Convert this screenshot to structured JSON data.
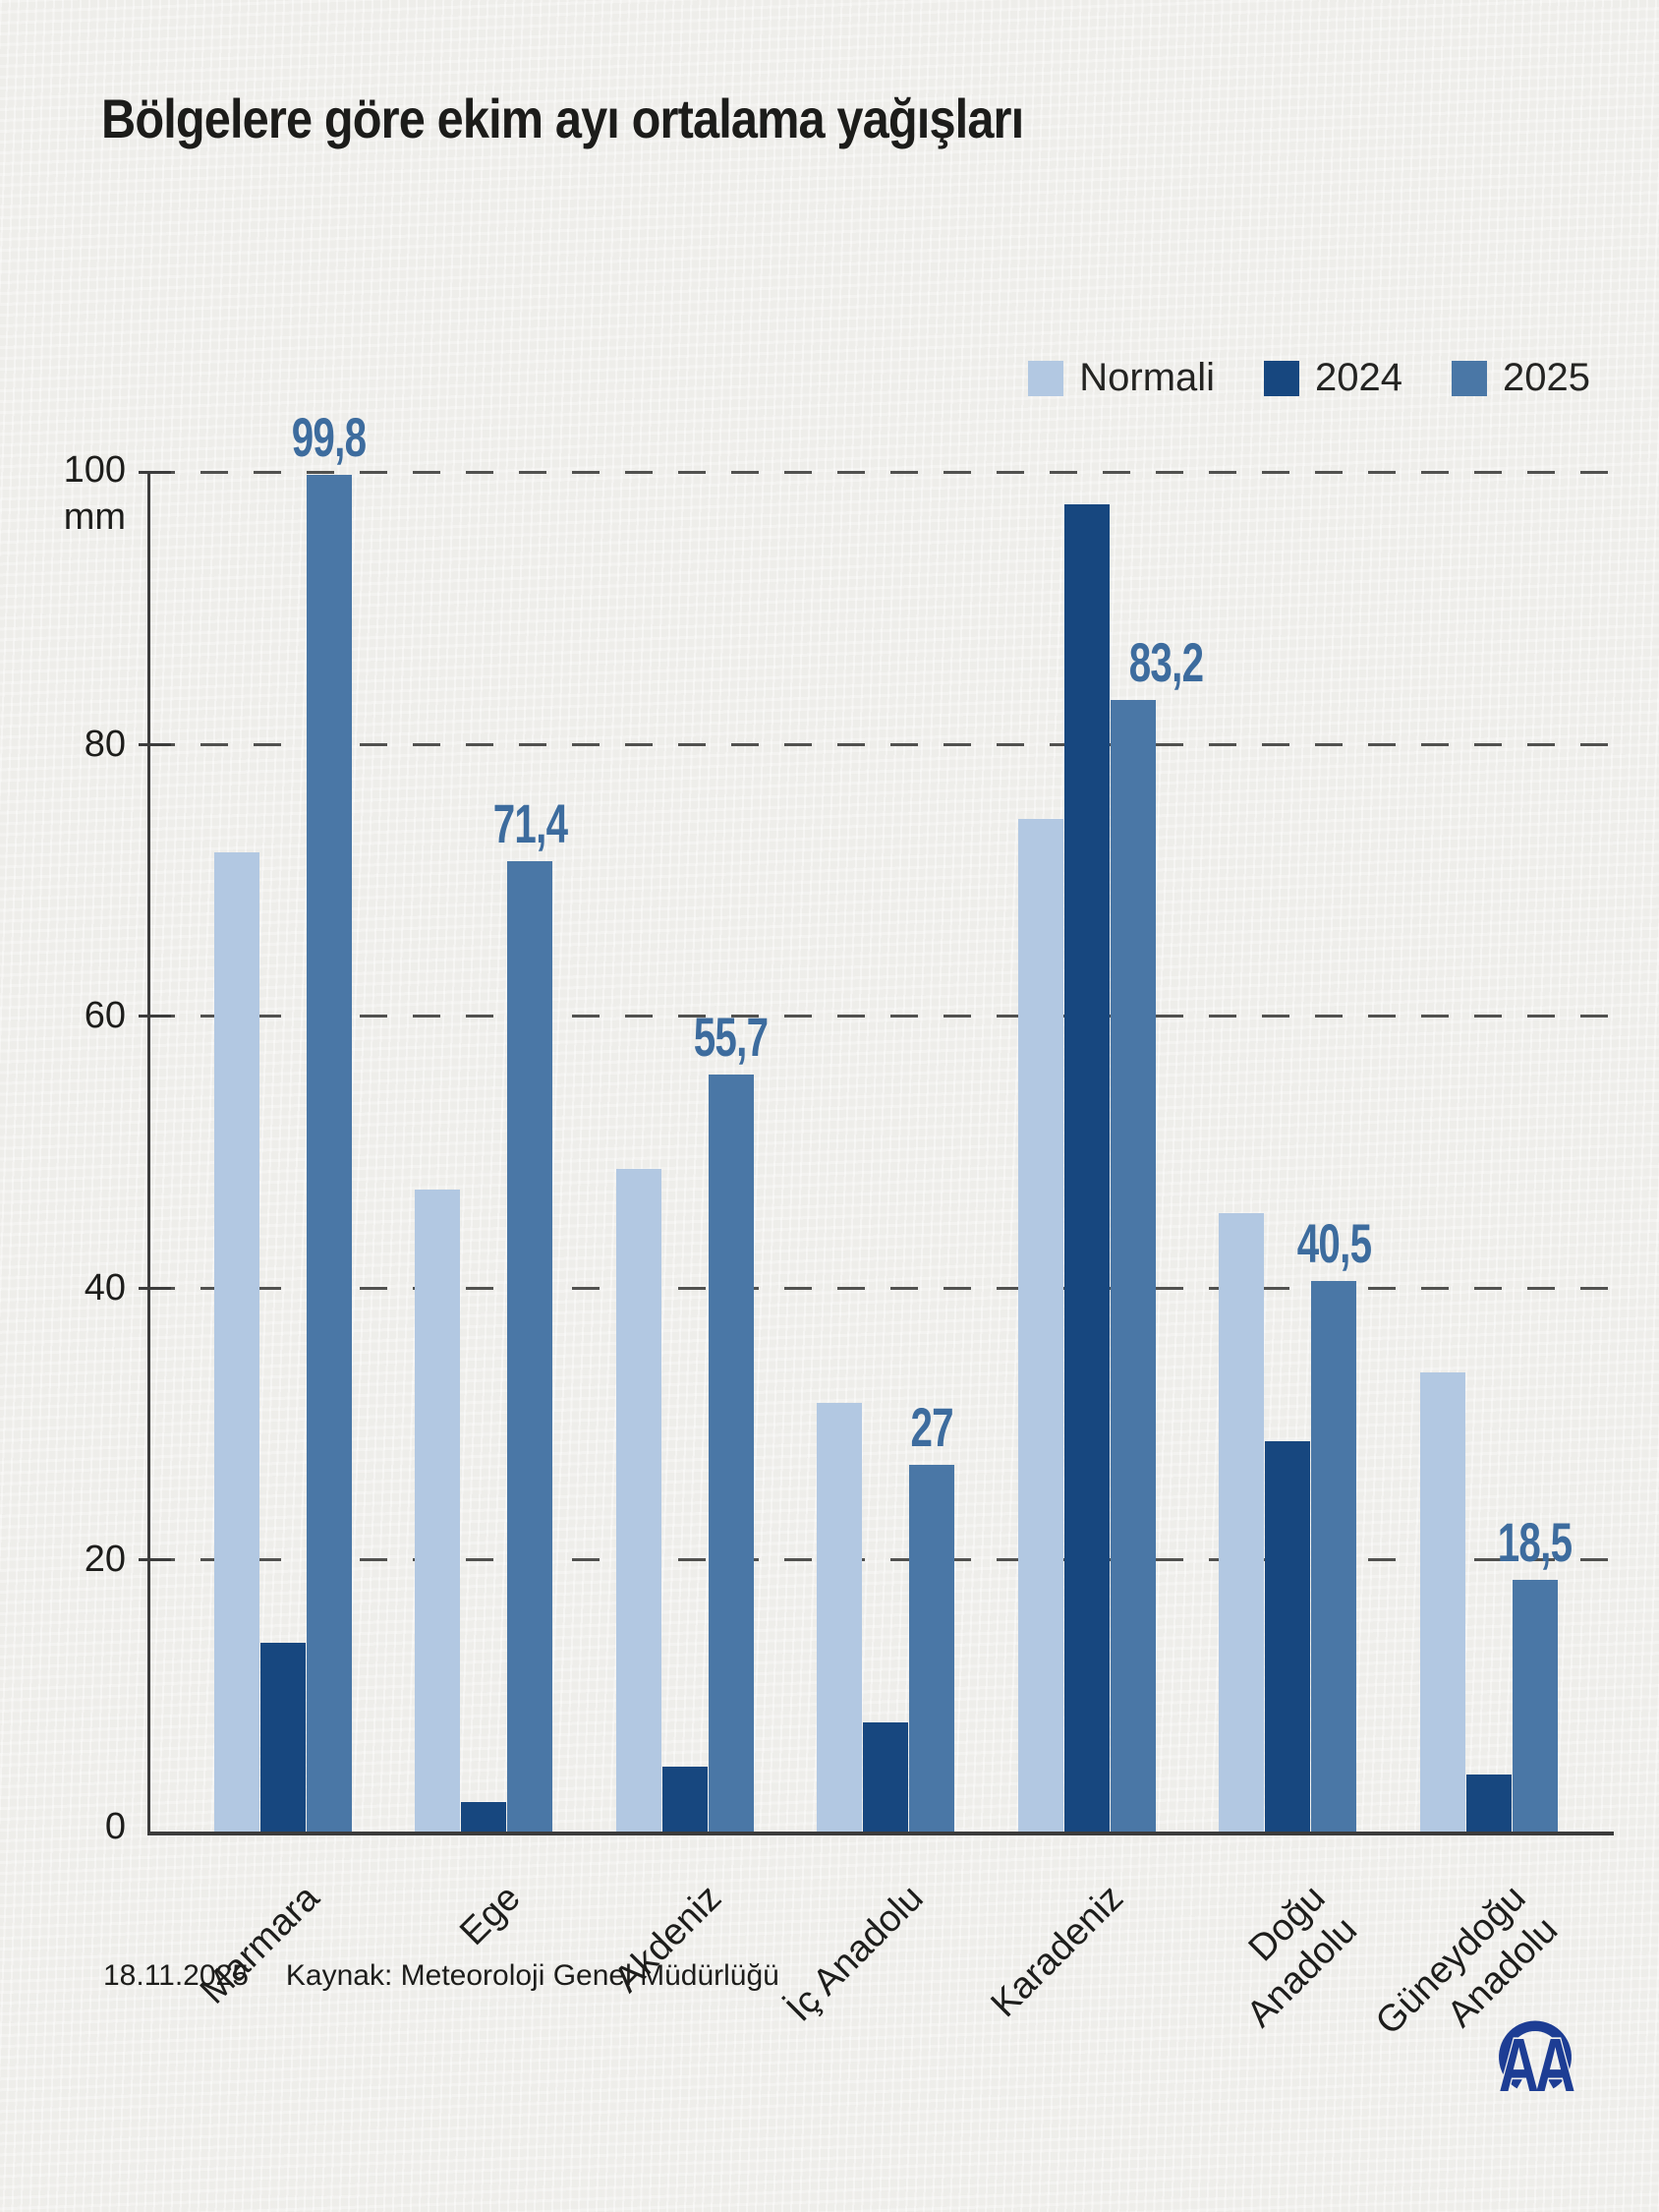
{
  "title": "Bölgelere göre ekim ayı ortalama yağışları",
  "legend": {
    "items": [
      {
        "label": "Normali",
        "color": "#b2c8e2"
      },
      {
        "label": "2024",
        "color": "#17477f"
      },
      {
        "label": "2025",
        "color": "#4a77a6"
      }
    ]
  },
  "chart_data": {
    "type": "bar",
    "title": "Bölgelere göre ekim ayı ortalama yağışları",
    "unit": "mm",
    "ylim": [
      0,
      100
    ],
    "yticks": [
      0,
      20,
      40,
      60,
      80,
      100
    ],
    "y_top_tick_label": "100",
    "y_unit_label": "mm",
    "grid": "horizontal-dashed",
    "legend_position": "top-right",
    "categories": [
      "Marmara",
      "Ege",
      "Akdeniz",
      "İç Anadolu",
      "Karadeniz",
      "Doğu Anadolu",
      "Güneydoğu Anadolu"
    ],
    "category_display": [
      [
        "Marmara"
      ],
      [
        "Ege"
      ],
      [
        "Akdeniz"
      ],
      [
        "İç Anadolu"
      ],
      [
        "Karadeniz"
      ],
      [
        "Doğu",
        "Anadolu"
      ],
      [
        "Güneydoğu",
        "Anadolu"
      ]
    ],
    "series": [
      {
        "name": "Normali",
        "color": "#b2c8e2",
        "values": [
          72.0,
          47.2,
          48.7,
          31.5,
          74.5,
          45.5,
          33.8
        ]
      },
      {
        "name": "2024",
        "color": "#17477f",
        "values": [
          13.9,
          2.2,
          4.8,
          8.0,
          97.6,
          28.7,
          4.2
        ]
      },
      {
        "name": "2025",
        "color": "#4a77a6",
        "values": [
          99.8,
          71.4,
          55.7,
          27,
          83.2,
          40.5,
          18.5
        ],
        "data_labels": [
          "99,8",
          "71,4",
          "55,7",
          "27",
          "83,2",
          "40,5",
          "18,5"
        ]
      }
    ],
    "data_label_color": "#3d6c9e"
  },
  "footer": {
    "date": "18.11.2025",
    "source": "Kaynak: Meteoroloji Genel Müdürlüğü"
  },
  "logo": {
    "name": "AA",
    "color": "#1d3d94"
  }
}
